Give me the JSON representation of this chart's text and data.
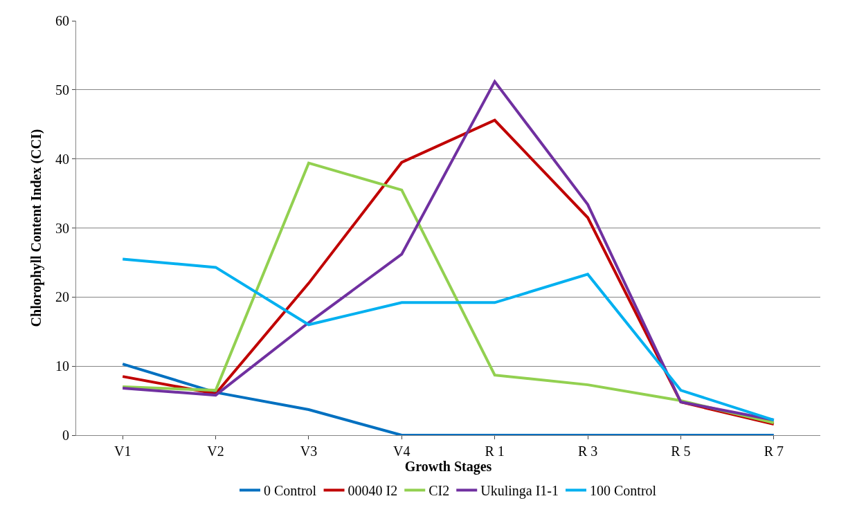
{
  "chart_data": {
    "type": "line",
    "xlabel": "Growth Stages",
    "ylabel": "Chlorophyll Content Index (CCI)",
    "categories": [
      "V1",
      "V2",
      "V3",
      "V4",
      "R 1",
      "R 3",
      "R 5",
      "R 7"
    ],
    "series": [
      {
        "name": "0 Control",
        "color": "#0070c0",
        "values": [
          10.3,
          6.2,
          3.7,
          0,
          0,
          0,
          0,
          0
        ]
      },
      {
        "name": "00040 I2",
        "color": "#c00000",
        "values": [
          8.5,
          6.0,
          22,
          39.5,
          45.6,
          31.5,
          4.8,
          1.6
        ]
      },
      {
        "name": "CI2",
        "color": "#92d050",
        "values": [
          7.0,
          6.5,
          39.4,
          35.5,
          8.7,
          7.3,
          5.0,
          1.8
        ]
      },
      {
        "name": "Ukulinga I1-1",
        "color": "#7030a0",
        "values": [
          6.8,
          5.8,
          16.3,
          26.2,
          51.2,
          33.4,
          4.8,
          2.2
        ]
      },
      {
        "name": "100 Control",
        "color": "#00b0f0",
        "values": [
          25.5,
          24.3,
          16.0,
          19.2,
          19.2,
          23.3,
          6.5,
          2.2
        ]
      }
    ],
    "ylim": [
      0,
      60
    ],
    "yticks": [
      0,
      10,
      20,
      30,
      40,
      50,
      60
    ],
    "grid": "y",
    "legend": "bottom",
    "marker": "none",
    "line_style": "solid"
  }
}
